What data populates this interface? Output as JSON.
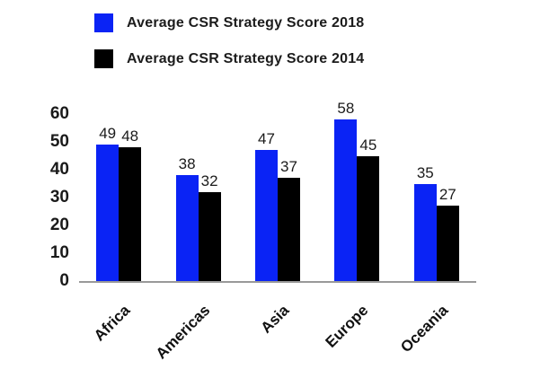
{
  "legend": {
    "items": [
      {
        "label": "Average CSR Strategy Score 2018",
        "color": "#0a23f5"
      },
      {
        "label": "Average CSR Strategy Score 2014",
        "color": "#000000"
      }
    ]
  },
  "chart_data": {
    "type": "bar",
    "title": "",
    "xlabel": "",
    "ylabel": "",
    "categories": [
      "Africa",
      "Americas",
      "Asia",
      "Europe",
      "Oceania"
    ],
    "series": [
      {
        "name": "Average CSR Strategy Score 2018",
        "color": "#0a23f5",
        "values": [
          49,
          38,
          47,
          58,
          35
        ]
      },
      {
        "name": "Average CSR Strategy Score 2014",
        "color": "#000000",
        "values": [
          48,
          32,
          37,
          45,
          27
        ]
      }
    ],
    "yticks": [
      0,
      10,
      20,
      30,
      40,
      50,
      60
    ],
    "ylim": [
      0,
      60
    ],
    "grid": false,
    "value_labels": true,
    "legend_position": "top-left",
    "axis_line_color": "#999999",
    "text_color": "#1a1a1a"
  }
}
